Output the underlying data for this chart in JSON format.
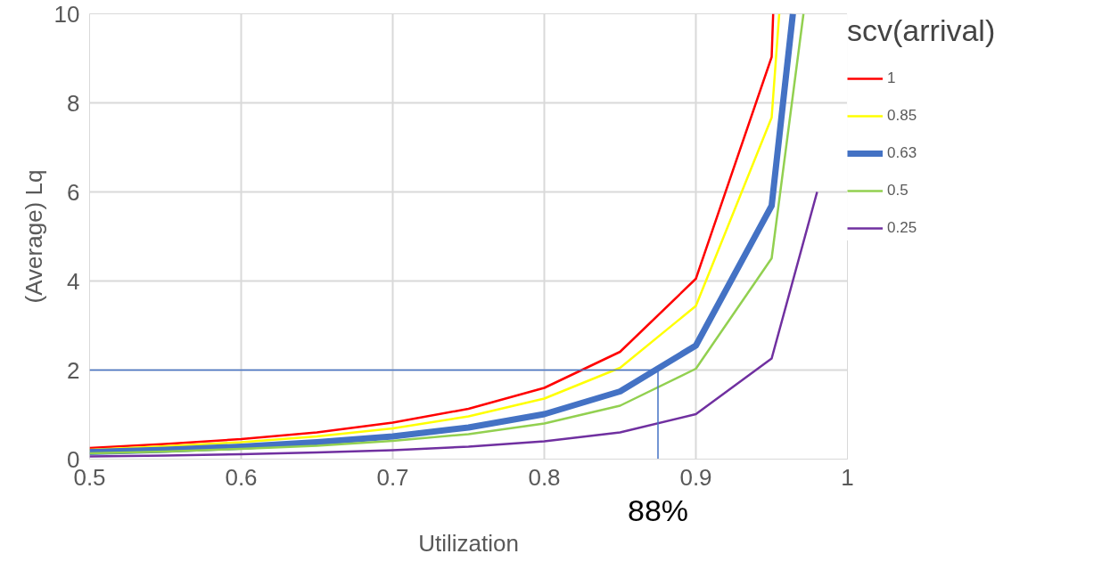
{
  "chart_data": {
    "type": "line",
    "xlabel": "Utilization",
    "ylabel": "(Average) Lq",
    "legend_title": "scv(arrival)",
    "xlim": [
      0.5,
      1
    ],
    "ylim": [
      0,
      10
    ],
    "xticks": [
      0.5,
      0.6,
      0.7,
      0.8,
      0.9,
      1
    ],
    "yticks": [
      0,
      2,
      4,
      6,
      8,
      10
    ],
    "grid": true,
    "legend": "right",
    "marker": "none",
    "line_style": "solid",
    "series": [
      {
        "name": "1",
        "color": "#ff0000",
        "x": [
          0.5,
          0.55,
          0.6,
          0.65,
          0.7,
          0.75,
          0.8,
          0.85,
          0.9,
          0.95,
          0.951
        ],
        "values": [
          0.25,
          0.34,
          0.45,
          0.6,
          0.82,
          1.13,
          1.6,
          2.41,
          4.05,
          9.03,
          10
        ]
      },
      {
        "name": "0.85",
        "color": "#ffff00",
        "x": [
          0.5,
          0.55,
          0.6,
          0.65,
          0.7,
          0.75,
          0.8,
          0.85,
          0.9,
          0.95,
          0.955
        ],
        "values": [
          0.21,
          0.29,
          0.38,
          0.51,
          0.69,
          0.96,
          1.36,
          2.05,
          3.44,
          7.67,
          10
        ]
      },
      {
        "name": "0.63",
        "color": "#4472c4",
        "x": [
          0.5,
          0.55,
          0.6,
          0.65,
          0.7,
          0.75,
          0.8,
          0.85,
          0.9,
          0.95,
          0.964
        ],
        "values": [
          0.16,
          0.21,
          0.28,
          0.38,
          0.51,
          0.71,
          1.01,
          1.52,
          2.55,
          5.69,
          10
        ]
      },
      {
        "name": "0.5",
        "color": "#92d050",
        "x": [
          0.5,
          0.55,
          0.6,
          0.65,
          0.7,
          0.75,
          0.8,
          0.85,
          0.9,
          0.95,
          0.971
        ],
        "values": [
          0.13,
          0.17,
          0.23,
          0.3,
          0.41,
          0.56,
          0.8,
          1.2,
          2.03,
          4.51,
          10
        ]
      },
      {
        "name": "0.25",
        "color": "#7030a0",
        "x": [
          0.5,
          0.55,
          0.6,
          0.65,
          0.7,
          0.75,
          0.8,
          0.85,
          0.9,
          0.95,
          0.98
        ],
        "values": [
          0.06,
          0.08,
          0.11,
          0.15,
          0.2,
          0.28,
          0.4,
          0.6,
          1.01,
          2.26,
          6.0
        ]
      }
    ],
    "ref_lines": [
      {
        "axis": "y",
        "value": 2,
        "label": null,
        "color": "#4472c4"
      },
      {
        "axis": "x",
        "value": 0.875,
        "label": "88%",
        "color": "#4472c4"
      }
    ]
  }
}
